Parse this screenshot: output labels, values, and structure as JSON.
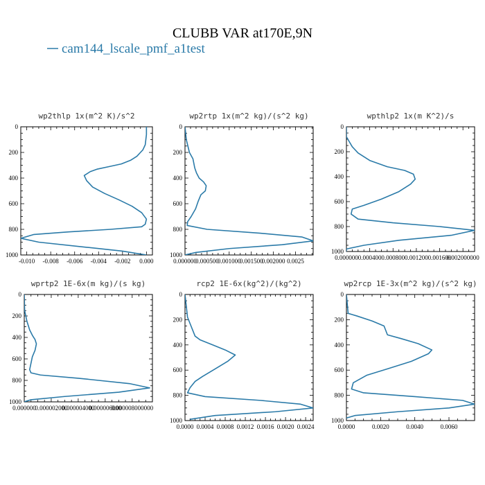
{
  "title": "CLUBB VAR at170E,9N",
  "legend": {
    "label": "cam144_lscale_pmf_a1test",
    "color": "#2a7aa8"
  },
  "chart_data": [
    {
      "type": "line",
      "title": "wp2thlp  1x(m^2 K)/s^2",
      "xlim": [
        -0.0105,
        0.0005
      ],
      "ylim": [
        0,
        1000
      ],
      "yticks": [
        "0",
        "200",
        "400",
        "600",
        "800",
        "1000"
      ],
      "xticks": [
        {
          "v": -0.01,
          "t": "-0.010"
        },
        {
          "v": -0.008,
          "t": "-0.008"
        },
        {
          "v": -0.006,
          "t": "-0.006"
        },
        {
          "v": -0.004,
          "t": "-0.004"
        },
        {
          "v": -0.002,
          "t": "-0.002"
        },
        {
          "v": 0.0,
          "t": "0.000"
        }
      ],
      "x": [
        0.0,
        0.0,
        -0.0001,
        -0.0003,
        -0.0005,
        -0.0008,
        -0.0013,
        -0.0021,
        -0.0031,
        -0.0041,
        -0.0047,
        -0.0052,
        -0.005,
        -0.0045,
        -0.0035,
        -0.0023,
        -0.0012,
        -0.0004,
        0.0,
        -0.0001,
        -0.0004,
        -0.003,
        -0.0065,
        -0.0094,
        -0.0105,
        -0.009,
        -0.005,
        -0.002,
        0.0
      ],
      "y": [
        0,
        60,
        140,
        180,
        200,
        230,
        260,
        290,
        310,
        330,
        350,
        380,
        420,
        470,
        520,
        570,
        620,
        670,
        720,
        760,
        780,
        800,
        820,
        840,
        870,
        900,
        940,
        970,
        1000
      ]
    },
    {
      "type": "line",
      "title": "wp2rtp  1x(m^2 kg)/(s^2 kg)",
      "xlim": [
        0.0,
        0.0029
      ],
      "ylim": [
        0,
        1000
      ],
      "yticks": [
        "0",
        "200",
        "400",
        "600",
        "800",
        "1000"
      ],
      "xticks": [
        {
          "v": 0.0,
          "t": "0.000000"
        },
        {
          "v": 0.0005,
          "t": "0.000500"
        },
        {
          "v": 0.001,
          "t": "0.001000"
        },
        {
          "v": 0.0015,
          "t": "0.001500"
        },
        {
          "v": 0.002,
          "t": "0.002000"
        },
        {
          "v": 0.0025,
          "t": "0.0025"
        }
      ],
      "x": [
        0.0,
        3e-05,
        0.0001,
        0.00018,
        0.00022,
        0.00026,
        0.00032,
        0.00042,
        0.00048,
        0.00046,
        0.00036,
        0.0003,
        0.00024,
        0.00014,
        6e-05,
        5e-05,
        0.0005,
        0.0017,
        0.00265,
        0.0029,
        0.0022,
        0.001,
        0.00025,
        0.0
      ],
      "y": [
        0,
        100,
        200,
        250,
        320,
        360,
        400,
        430,
        460,
        500,
        530,
        580,
        640,
        700,
        740,
        770,
        800,
        830,
        860,
        890,
        920,
        950,
        980,
        1000
      ]
    },
    {
      "type": "line",
      "title": "wpthlp2  1x(m K^2)/s",
      "xlim": [
        0.0,
        0.0022
      ],
      "ylim": [
        0,
        1000
      ],
      "yticks": [
        "0",
        "200",
        "400",
        "600",
        "800",
        "1000"
      ],
      "xticks": [
        {
          "v": 0.0,
          "t": "0.000000"
        },
        {
          "v": 0.0004,
          "t": "0.000400"
        },
        {
          "v": 0.0008,
          "t": "0.000800"
        },
        {
          "v": 0.0012,
          "t": "0.001200"
        },
        {
          "v": 0.0016,
          "t": "0.001600"
        },
        {
          "v": 0.002,
          "t": "0.002000000"
        }
      ],
      "x": [
        0.0,
        0.0,
        5e-05,
        0.0001,
        0.0002,
        0.0004,
        0.0007,
        0.001,
        0.00115,
        0.00118,
        0.0011,
        0.0009,
        0.0006,
        0.0003,
        0.0001,
        8e-05,
        0.0002,
        0.0008,
        0.0016,
        0.0022,
        0.0018,
        0.0009,
        0.0003,
        0.0,
        0.0
      ],
      "y": [
        0,
        80,
        120,
        160,
        210,
        270,
        320,
        350,
        380,
        420,
        460,
        520,
        580,
        630,
        660,
        700,
        740,
        770,
        800,
        830,
        870,
        910,
        950,
        980,
        1000
      ]
    },
    {
      "type": "line",
      "title": "wprtp2  1E-6x(m kg)/(s kg)",
      "xlim": [
        0.0,
        9.5e-06
      ],
      "ylim": [
        0,
        1000
      ],
      "yticks": [
        "0",
        "200",
        "400",
        "600",
        "800",
        "1000"
      ],
      "xticks": [
        {
          "v": 0.0,
          "t": "0.000000"
        },
        {
          "v": 2e-06,
          "t": "0.000002000"
        },
        {
          "v": 4e-06,
          "t": "0.000004000"
        },
        {
          "v": 6e-06,
          "t": "0.000006000"
        },
        {
          "v": 8e-06,
          "t": "0.000008000000"
        }
      ],
      "x": [
        0.0,
        3e-08,
        2e-07,
        4e-07,
        6e-07,
        8e-07,
        9e-07,
        8e-07,
        6e-07,
        5e-07,
        4e-07,
        5e-07,
        1.2e-06,
        4e-06,
        7.8e-06,
        9.3e-06,
        7e-06,
        3e-06,
        5e-07,
        0.0
      ],
      "y": [
        0,
        150,
        250,
        330,
        380,
        420,
        460,
        520,
        580,
        640,
        700,
        730,
        750,
        780,
        830,
        870,
        910,
        950,
        980,
        1000
      ]
    },
    {
      "type": "line",
      "title": "rcp2  1E-6x(kg^2)/(kg^2)",
      "xlim": [
        0.0,
        0.00255
      ],
      "ylim": [
        0,
        1000
      ],
      "yticks": [
        "0",
        "200",
        "400",
        "600",
        "800",
        "1000"
      ],
      "xticks": [
        {
          "v": 0.0,
          "t": "0.0000"
        },
        {
          "v": 0.0004,
          "t": "0.0004"
        },
        {
          "v": 0.0008,
          "t": "0.0008"
        },
        {
          "v": 0.0012,
          "t": "0.0012"
        },
        {
          "v": 0.0016,
          "t": "0.0016"
        },
        {
          "v": 0.002,
          "t": "0.0020"
        },
        {
          "v": 0.0024,
          "t": "0.0024"
        }
      ],
      "x": [
        0.0,
        5e-05,
        0.0001,
        0.00015,
        0.0002,
        0.0003,
        0.00055,
        0.0008,
        0.001,
        0.00085,
        0.0006,
        0.00035,
        0.0002,
        0.0001,
        5e-05,
        0.0004,
        0.0015,
        0.0023,
        0.00255,
        0.0018,
        0.0006,
        0.0001
      ],
      "y": [
        0,
        180,
        230,
        280,
        330,
        360,
        400,
        440,
        480,
        530,
        590,
        650,
        690,
        740,
        780,
        810,
        840,
        870,
        900,
        930,
        960,
        990
      ]
    },
    {
      "type": "line",
      "title": "wp2rcp  1E-3x(m^2 kg)/(s^2 kg)",
      "xlim": [
        0.0,
        0.0075
      ],
      "ylim": [
        0,
        1000
      ],
      "yticks": [
        "0",
        "200",
        "400",
        "600",
        "800",
        "1000"
      ],
      "xticks": [
        {
          "v": 0.0,
          "t": "0.0000"
        },
        {
          "v": 0.002,
          "t": "0.0020"
        },
        {
          "v": 0.004,
          "t": "0.0040"
        },
        {
          "v": 0.006,
          "t": "0.0060"
        }
      ],
      "x": [
        0.0,
        0.0001,
        0.0006,
        0.0015,
        0.0022,
        0.0024,
        0.0032,
        0.0042,
        0.005,
        0.0048,
        0.0038,
        0.0024,
        0.0012,
        0.0004,
        0.0003,
        0.001,
        0.004,
        0.0068,
        0.0075,
        0.006,
        0.003,
        0.0005,
        0.0
      ],
      "y": [
        0,
        150,
        170,
        210,
        250,
        320,
        350,
        390,
        440,
        470,
        530,
        590,
        640,
        700,
        750,
        780,
        810,
        840,
        870,
        900,
        930,
        960,
        980
      ]
    }
  ]
}
